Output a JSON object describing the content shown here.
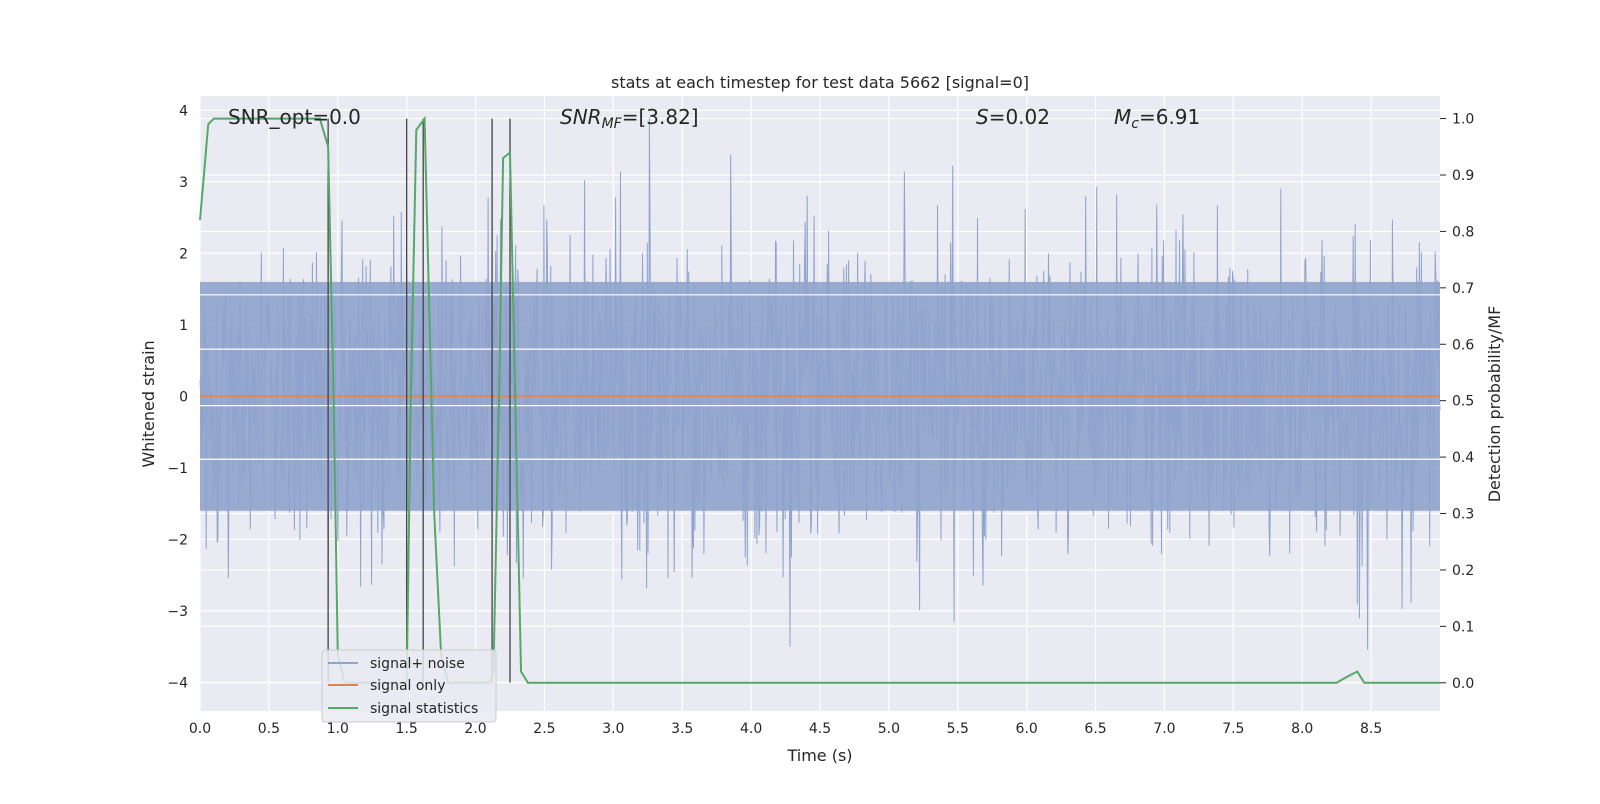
{
  "chart_data": {
    "type": "line",
    "title": "stats at each timestep for test data 5662 [signal=0]",
    "xlabel": "Time (s)",
    "ylabel": "Whitened strain",
    "ylabel_right": "Detection probability/MF",
    "xlim": [
      0.0,
      9.0
    ],
    "ylim": [
      -4.4,
      4.2
    ],
    "ylim_right": [
      -0.05,
      1.04
    ],
    "xticks": [
      0.0,
      0.5,
      1.0,
      1.5,
      2.0,
      2.5,
      3.0,
      3.5,
      4.0,
      4.5,
      5.0,
      5.5,
      6.0,
      6.5,
      7.0,
      7.5,
      8.0,
      8.5
    ],
    "xtick_labels": [
      "0.0",
      "0.5",
      "1.0",
      "1.5",
      "2.0",
      "2.5",
      "3.0",
      "3.5",
      "4.0",
      "4.5",
      "5.0",
      "5.5",
      "6.0",
      "6.5",
      "7.0",
      "7.5",
      "8.0",
      "8.5"
    ],
    "yticks": [
      -4,
      -3,
      -2,
      -1,
      0,
      1,
      2,
      3,
      4
    ],
    "ytick_labels": [
      "−4",
      "−3",
      "−2",
      "−1",
      "0",
      "1",
      "2",
      "3",
      "4"
    ],
    "yticks_right": [
      0.0,
      0.1,
      0.2,
      0.3,
      0.4,
      0.5,
      0.6,
      0.7,
      0.8,
      0.9,
      1.0
    ],
    "ytick_right_labels": [
      "0.0",
      "0.1",
      "0.2",
      "0.3",
      "0.4",
      "0.5",
      "0.6",
      "0.7",
      "0.8",
      "0.9",
      "1.0"
    ],
    "grid": true,
    "legend_position": "lower-left",
    "annotations": {
      "snr_opt": "SNR_opt=0.0",
      "snr_mf_main": "SNR",
      "snr_mf_sub": "MF",
      "snr_mf_rest": "=[3.82]",
      "s_main": "S",
      "s_rest": "=0.02",
      "mc_main": "M",
      "mc_sub": "c",
      "mc_rest": "=6.91"
    },
    "series": [
      {
        "name": "signal+ noise",
        "color": "#8fa3cc",
        "axis": "left",
        "description_values": "whitened strain noise, fluctuating roughly between -4 and 4",
        "envelope_lower": -1.6,
        "envelope_upper": 1.6
      },
      {
        "name": "signal only",
        "color": "#dd8452",
        "axis": "left",
        "x": [
          0.0,
          9.0
        ],
        "y": [
          0.0,
          0.0
        ]
      },
      {
        "name": "signal statistics",
        "color": "#55a868",
        "axis": "right",
        "x": [
          0.0,
          0.06,
          0.1,
          0.2,
          0.3,
          0.4,
          0.5,
          0.6,
          0.7,
          0.8,
          0.87,
          0.93,
          0.97,
          1.0,
          1.05,
          1.5,
          1.53,
          1.57,
          1.63,
          1.67,
          1.7,
          1.75,
          1.8,
          2.0,
          2.1,
          2.13,
          2.17,
          2.2,
          2.25,
          2.33,
          2.38,
          2.45,
          3.0,
          4.0,
          5.0,
          6.0,
          7.0,
          8.0,
          8.25,
          8.32,
          8.4,
          8.45,
          8.5,
          9.0
        ],
        "y": [
          0.82,
          0.99,
          1.0,
          1.0,
          1.0,
          1.0,
          1.0,
          1.0,
          1.0,
          1.0,
          1.0,
          0.95,
          0.5,
          0.05,
          0.0,
          0.0,
          0.5,
          0.98,
          1.0,
          0.6,
          0.3,
          0.05,
          0.0,
          0.0,
          0.0,
          0.02,
          0.5,
          0.93,
          0.94,
          0.02,
          0.0,
          0.0,
          0.0,
          0.0,
          0.0,
          0.0,
          0.0,
          0.0,
          0.0,
          0.01,
          0.02,
          0.0,
          0.0,
          0.0
        ]
      }
    ],
    "vertical_lines_x": [
      0.93,
      1.5,
      1.62,
      2.12,
      2.25
    ],
    "vertical_lines_range": [
      0.0,
      1.0
    ]
  }
}
